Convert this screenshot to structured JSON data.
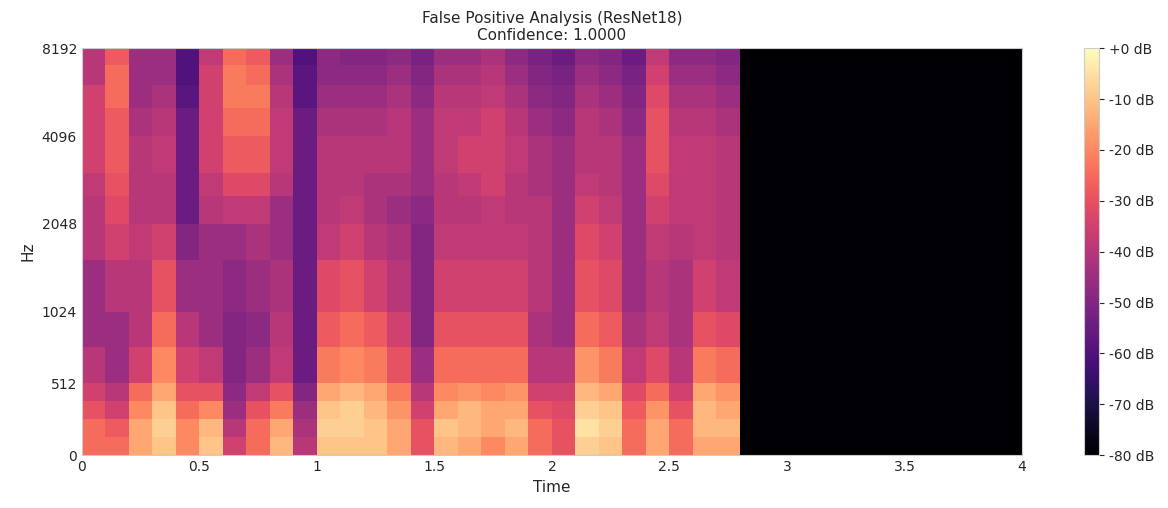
{
  "chart_data": {
    "type": "heatmap",
    "title": "False Positive Analysis (ResNet18)\nConfidence: 1.0000",
    "x_label": "Time",
    "y_label": "Hz",
    "xlim": [
      0,
      4
    ],
    "xticks": [
      0,
      0.5,
      1,
      1.5,
      2,
      2.5,
      3,
      3.5,
      4
    ],
    "ylim": [
      0,
      8192
    ],
    "yticks": [
      0,
      512,
      1024,
      2048,
      4096,
      8192
    ],
    "color": "magma",
    "time_edges": [
      0,
      0.1,
      0.2,
      0.3,
      0.4,
      0.5,
      0.6,
      0.7,
      0.8,
      0.9,
      1.0,
      1.1,
      1.2,
      1.3,
      1.4,
      1.5,
      1.6,
      1.7,
      1.8,
      1.9,
      2.0,
      2.1,
      2.2,
      2.3,
      2.4,
      2.5,
      2.6,
      2.7,
      2.8,
      4.0
    ],
    "freq_edges": [
      0,
      128,
      256,
      384,
      512,
      768,
      1024,
      1536,
      2048,
      2560,
      3072,
      4096,
      5120,
      6144,
      7168,
      8192
    ],
    "cells": [
      [
        -25,
        -25,
        -30,
        -35,
        -40,
        -45,
        -45,
        -40,
        -40,
        -38,
        -35,
        -35,
        -35,
        -40,
        -40
      ],
      [
        -25,
        -28,
        -35,
        -40,
        -45,
        -45,
        -40,
        -35,
        -32,
        -30,
        -28,
        -28,
        -25,
        -25,
        -28
      ],
      [
        -15,
        -15,
        -20,
        -25,
        -35,
        -40,
        -40,
        -38,
        -40,
        -40,
        -40,
        -42,
        -45,
        -45,
        -45
      ],
      [
        -10,
        -8,
        -10,
        -15,
        -20,
        -25,
        -30,
        -35,
        -40,
        -40,
        -38,
        -40,
        -42,
        -45,
        -45
      ],
      [
        -20,
        -20,
        -25,
        -30,
        -35,
        -40,
        -45,
        -50,
        -55,
        -55,
        -55,
        -55,
        -58,
        -60,
        -60
      ],
      [
        -10,
        -12,
        -20,
        -30,
        -38,
        -45,
        -45,
        -45,
        -40,
        -38,
        -35,
        -35,
        -35,
        -35,
        -38
      ],
      [
        -35,
        -40,
        -45,
        -48,
        -50,
        -50,
        -48,
        -45,
        -38,
        -32,
        -28,
        -25,
        -22,
        -22,
        -25
      ],
      [
        -25,
        -25,
        -30,
        -38,
        -45,
        -48,
        -45,
        -42,
        -38,
        -32,
        -28,
        -25,
        -22,
        -25,
        -28
      ],
      [
        -12,
        -15,
        -22,
        -30,
        -38,
        -40,
        -42,
        -45,
        -45,
        -40,
        -38,
        -38,
        -40,
        -42,
        -45
      ],
      [
        -40,
        -42,
        -45,
        -50,
        -55,
        -55,
        -55,
        -55,
        -55,
        -55,
        -55,
        -55,
        -58,
        -58,
        -60
      ],
      [
        -10,
        -8,
        -10,
        -15,
        -22,
        -28,
        -32,
        -38,
        -40,
        -40,
        -40,
        -42,
        -45,
        -48,
        -48
      ],
      [
        -10,
        -8,
        -8,
        -12,
        -20,
        -25,
        -30,
        -35,
        -38,
        -40,
        -40,
        -42,
        -45,
        -48,
        -50
      ],
      [
        -10,
        -10,
        -12,
        -15,
        -22,
        -28,
        -35,
        -40,
        -42,
        -42,
        -40,
        -42,
        -45,
        -48,
        -50
      ],
      [
        -15,
        -15,
        -18,
        -22,
        -30,
        -35,
        -40,
        -42,
        -45,
        -42,
        -40,
        -40,
        -42,
        -45,
        -48
      ],
      [
        -30,
        -30,
        -35,
        -40,
        -45,
        -50,
        -50,
        -50,
        -48,
        -45,
        -45,
        -45,
        -48,
        -50,
        -52
      ],
      [
        -12,
        -10,
        -15,
        -20,
        -25,
        -30,
        -35,
        -38,
        -40,
        -40,
        -38,
        -38,
        -40,
        -42,
        -45
      ],
      [
        -15,
        -12,
        -12,
        -18,
        -25,
        -30,
        -35,
        -38,
        -40,
        -38,
        -35,
        -38,
        -40,
        -42,
        -45
      ],
      [
        -20,
        -15,
        -15,
        -20,
        -25,
        -30,
        -35,
        -38,
        -38,
        -35,
        -35,
        -35,
        -38,
        -40,
        -42
      ],
      [
        -15,
        -12,
        -15,
        -18,
        -25,
        -30,
        -35,
        -38,
        -40,
        -40,
        -38,
        -40,
        -42,
        -45,
        -48
      ],
      [
        -25,
        -25,
        -30,
        -35,
        -40,
        -42,
        -40,
        -40,
        -40,
        -42,
        -42,
        -45,
        -48,
        -50,
        -52
      ],
      [
        -30,
        -30,
        -32,
        -35,
        -40,
        -45,
        -45,
        -45,
        -45,
        -45,
        -45,
        -48,
        -50,
        -52,
        -55
      ],
      [
        -8,
        -5,
        -8,
        -12,
        -18,
        -25,
        -30,
        -32,
        -35,
        -38,
        -40,
        -40,
        -42,
        -45,
        -48
      ],
      [
        -10,
        -8,
        -10,
        -15,
        -22,
        -28,
        -32,
        -35,
        -38,
        -40,
        -40,
        -42,
        -45,
        -48,
        -50
      ],
      [
        -25,
        -25,
        -28,
        -32,
        -38,
        -42,
        -45,
        -45,
        -45,
        -45,
        -45,
        -48,
        -50,
        -52,
        -55
      ],
      [
        -15,
        -15,
        -18,
        -25,
        -32,
        -38,
        -40,
        -38,
        -35,
        -32,
        -30,
        -30,
        -32,
        -35,
        -38
      ],
      [
        -25,
        -25,
        -30,
        -35,
        -40,
        -42,
        -42,
        -40,
        -38,
        -38,
        -38,
        -40,
        -42,
        -45,
        -48
      ],
      [
        -15,
        -12,
        -12,
        -15,
        -22,
        -30,
        -35,
        -38,
        -38,
        -38,
        -38,
        -40,
        -42,
        -45,
        -48
      ],
      [
        -15,
        -12,
        -15,
        -18,
        -25,
        -32,
        -38,
        -40,
        -40,
        -40,
        -40,
        -42,
        -45,
        -48,
        -50
      ],
      [
        -80,
        -80,
        -80,
        -80,
        -80,
        -80,
        -80,
        -80,
        -80,
        -80,
        -80,
        -80,
        -80,
        -80,
        -80
      ]
    ],
    "colorbar_range": [
      -80,
      0
    ],
    "colorbar_ticks": [
      {
        "value": 0,
        "label": "+0 dB"
      },
      {
        "value": -10,
        "label": "-10 dB"
      },
      {
        "value": -20,
        "label": "-20 dB"
      },
      {
        "value": -30,
        "label": "-30 dB"
      },
      {
        "value": -40,
        "label": "-40 dB"
      },
      {
        "value": -50,
        "label": "-50 dB"
      },
      {
        "value": -60,
        "label": "-60 dB"
      },
      {
        "value": -70,
        "label": "-70 dB"
      },
      {
        "value": -80,
        "label": "-80 dB"
      }
    ]
  }
}
